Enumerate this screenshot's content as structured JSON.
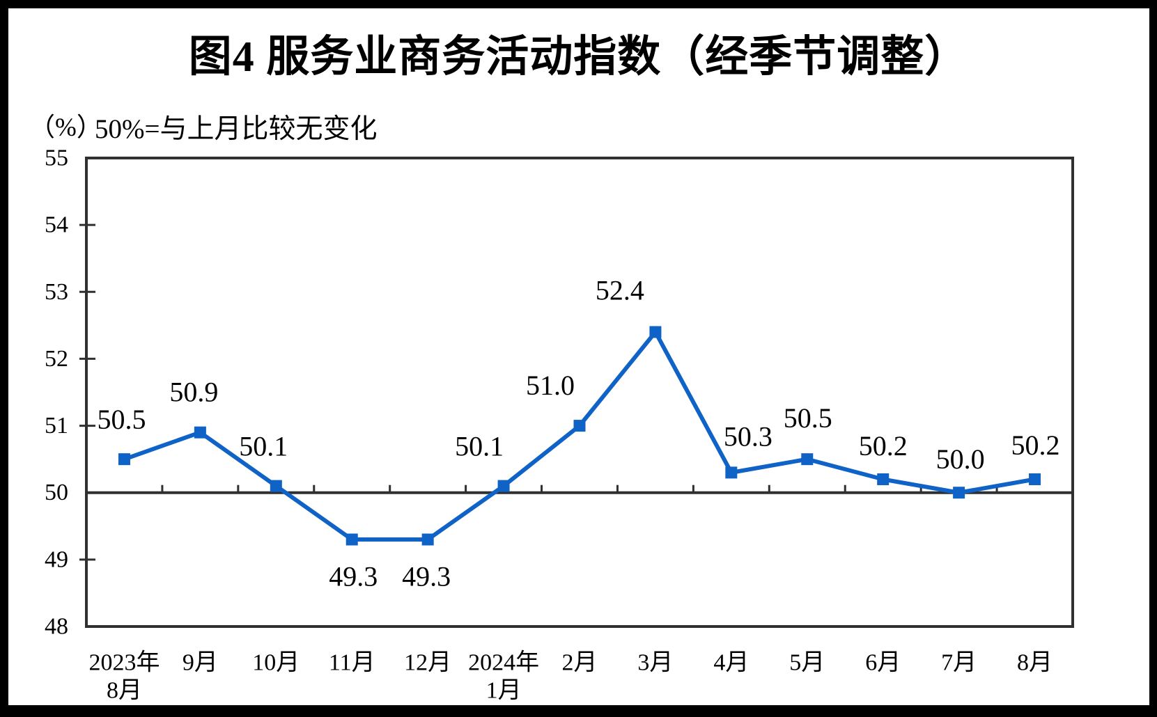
{
  "page": {
    "title": "图4 服务业商务活动指数（经季节调整）",
    "unit_label": "（%）",
    "note": "50%=与上月比较无变化"
  },
  "chart_data": {
    "type": "line",
    "categories": [
      [
        "2023年",
        "8月"
      ],
      [
        "9月"
      ],
      [
        "10月"
      ],
      [
        "11月"
      ],
      [
        "12月"
      ],
      [
        "2024年",
        "1月"
      ],
      [
        "2月"
      ],
      [
        "3月"
      ],
      [
        "4月"
      ],
      [
        "5月"
      ],
      [
        "6月"
      ],
      [
        "7月"
      ],
      [
        "8月"
      ]
    ],
    "values": [
      50.5,
      50.9,
      50.1,
      49.3,
      49.3,
      50.1,
      51.0,
      52.4,
      50.3,
      50.5,
      50.2,
      50.0,
      50.2
    ],
    "point_labels": [
      "50.5",
      "50.9",
      "50.1",
      "49.3",
      "49.3",
      "50.1",
      "51.0",
      "52.4",
      "50.3",
      "50.5",
      "50.2",
      "50.0",
      "50.2"
    ],
    "ylabel": "（%）",
    "ylim": [
      48,
      55
    ],
    "yticks": [
      48,
      49,
      50,
      51,
      52,
      53,
      54,
      55
    ],
    "baseline": 50,
    "grid": false,
    "legend_position": "none",
    "line_color": "#1063c6",
    "marker": "square",
    "axis_color": "#303030",
    "label_color": "#000000",
    "background_color": "#ffffff",
    "frame_color": "#000000"
  }
}
